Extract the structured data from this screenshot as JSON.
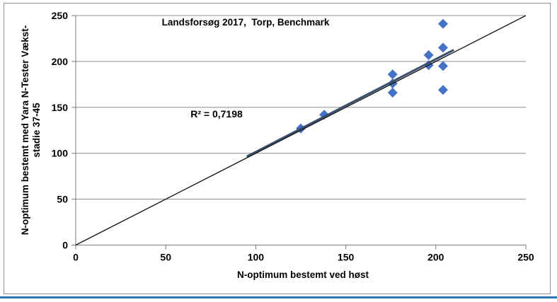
{
  "chart": {
    "title": "Landsforsøg 2017,  Torp, Benchmark",
    "annotation_r2": "R² = 0,7198",
    "x_axis_label": "N-optimum bestemt ved høst",
    "y_axis_label_line1": "N-optimum bestemt med Yara N-Tester Vækst-",
    "y_axis_label_line2": "stadie 37-45"
  },
  "chart_data": {
    "type": "scatter",
    "title": "Landsforsøg 2017,  Torp, Benchmark",
    "xlabel": "N-optimum bestemt ved høst",
    "ylabel": "N-optimum bestemt med Yara N-Tester Vækst- stadie 37-45",
    "xlim": [
      0,
      250
    ],
    "ylim": [
      0,
      250
    ],
    "x_ticks": [
      0,
      50,
      100,
      150,
      200,
      250
    ],
    "y_ticks": [
      0,
      50,
      100,
      150,
      200,
      250
    ],
    "grid": "horizontal-only",
    "legend": "none",
    "r_squared_text": "R² = 0,7198",
    "r_squared_value": 0.7198,
    "points": [
      {
        "x": 125,
        "y": 127
      },
      {
        "x": 138,
        "y": 142
      },
      {
        "x": 176,
        "y": 186
      },
      {
        "x": 176,
        "y": 176
      },
      {
        "x": 176,
        "y": 166
      },
      {
        "x": 196,
        "y": 207
      },
      {
        "x": 196,
        "y": 196
      },
      {
        "x": 204,
        "y": 241
      },
      {
        "x": 204,
        "y": 215
      },
      {
        "x": 204,
        "y": 195
      },
      {
        "x": 204,
        "y": 169
      }
    ],
    "marker": {
      "shape": "diamond",
      "color": "#4472C4",
      "half_size": 7
    },
    "trendline": {
      "x1": 95,
      "y1": 96.4,
      "x2": 210,
      "y2": 212.6,
      "color": "#3a4f6f",
      "width": 3
    },
    "identity_line": {
      "x1": 0,
      "y1": 0,
      "x2": 250,
      "y2": 250,
      "color": "#1a1a1a",
      "width": 1.4
    }
  },
  "colors": {
    "grid": "#8c8c8c",
    "axis": "#7a7a7a",
    "chart_border": "#8f8f8f",
    "bottom_rule": "#2E75B6",
    "text": "#000000"
  }
}
